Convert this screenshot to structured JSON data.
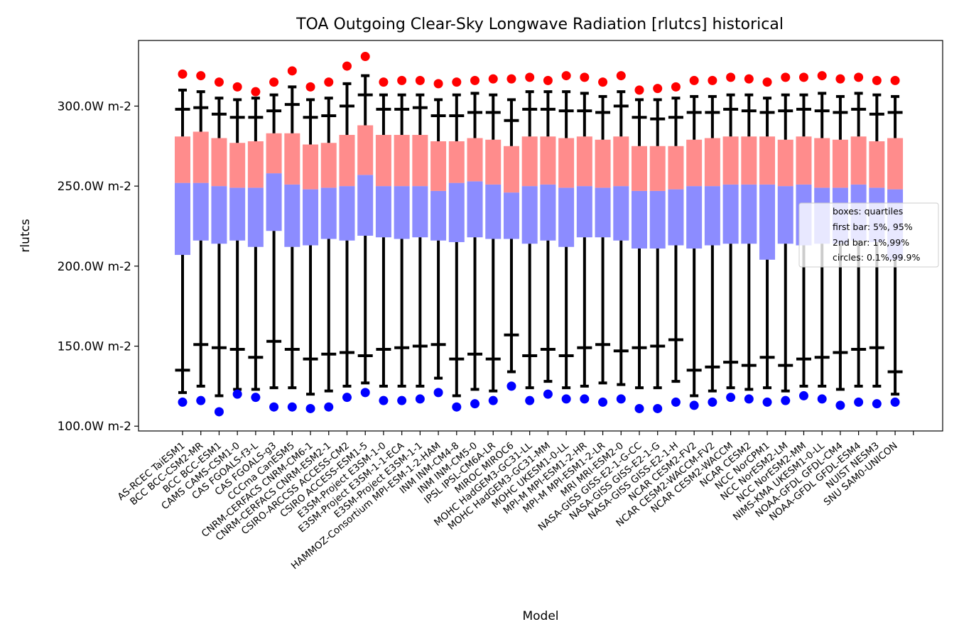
{
  "chart_data": {
    "type": "box",
    "title": "TOA Outgoing Clear-Sky Longwave Radiation [rlutcs] historical",
    "xlabel": "Model",
    "ylabel": "rlutcs",
    "ylim": [
      97,
      341
    ],
    "yticks": [
      100,
      150,
      200,
      250,
      300
    ],
    "ytick_labels": [
      "100.0W m-2",
      "150.0W m-2",
      "200.0W m-2",
      "250.0W m-2",
      "300.0W m-2"
    ],
    "legend": {
      "position": "right",
      "lines": [
        "boxes: quartiles",
        "first bar: 5%, 95%",
        "2nd bar: 1%,99%",
        "circles: 0.1%,99.9%"
      ]
    },
    "colors": {
      "lower_box": "#8c8cff",
      "upper_box": "#ff8c8c",
      "whisker": "#000000",
      "high_circle": "#ff0000",
      "low_circle": "#0000ff"
    },
    "categories": [
      "AS-RCEC TaiESM1",
      "BCC BCC-CSM2-MR",
      "BCC BCC-ESM1",
      "CAMS CAMS-CSM1-0",
      "CAS FGOALS-f3-L",
      "CAS FGOALS-g3",
      "CCCma CanESM5",
      "CNRM-CERFACS CNRM-CM6-1",
      "CNRM-CERFACS CNRM-ESM2-1",
      "CSIRO-ARCCSS ACCESS-CM2",
      "CSIRO ACCESS-ESM1-5",
      "E3SM-Project E3SM-1-0",
      "E3SM-Project E3SM-1-1-ECA",
      "E3SM-Project E3SM-1-1",
      "HAMMOZ-Consortium MPI-ESM-1-2-HAM",
      "INM INM-CM4-8",
      "INM INM-CM5-0",
      "IPSL IPSL-CM6A-LR",
      "MIROC MIROC6",
      "MOHC HadGEM3-GC31-LL",
      "MOHC HadGEM3-GC31-MM",
      "MOHC UKESM1-0-LL",
      "MPI-M MPI-ESM1-2-HR",
      "MPI-M MPI-ESM1-2-LR",
      "MRI MRI-ESM2-0",
      "NASA-GISS GISS-E2-1-G-CC",
      "NASA-GISS GISS-E2-1-G",
      "NASA-GISS GISS-E2-1-H",
      "NCAR CESM2-FV2",
      "NCAR CESM2-WACCM-FV2",
      "NCAR CESM2-WACCM",
      "NCAR CESM2",
      "NCC NorCPM1",
      "NCC NorESM2-LM",
      "NCC NorESM2-MM",
      "NIMS-KMA UKESM1-0-LL",
      "NOAA-GFDL GFDL-CM4",
      "NOAA-GFDL GFDL-ESM4",
      "NUIST NESM3",
      "SNU SAM0-UNICON"
    ],
    "series": {
      "p0_1": [
        115,
        116,
        109,
        120,
        118,
        112,
        112,
        111,
        112,
        118,
        121,
        116,
        116,
        117,
        121,
        112,
        114,
        116,
        125,
        116,
        120,
        117,
        117,
        115,
        117,
        111,
        111,
        115,
        113,
        115,
        118,
        117,
        115,
        116,
        119,
        117,
        113,
        115,
        114,
        115
      ],
      "p1": [
        121,
        125,
        119,
        123,
        123,
        124,
        124,
        120,
        122,
        125,
        127,
        125,
        125,
        125,
        130,
        119,
        123,
        122,
        134,
        124,
        128,
        124,
        125,
        127,
        126,
        124,
        124,
        128,
        119,
        122,
        124,
        123,
        124,
        122,
        125,
        125,
        123,
        125,
        125,
        120
      ],
      "p5": [
        135,
        151,
        149,
        148,
        143,
        153,
        148,
        142,
        145,
        146,
        144,
        148,
        149,
        150,
        151,
        142,
        145,
        142,
        157,
        144,
        148,
        144,
        149,
        151,
        147,
        149,
        150,
        154,
        135,
        137,
        140,
        138,
        143,
        138,
        142,
        143,
        146,
        148,
        149,
        134
      ],
      "q25": [
        207,
        216,
        214,
        216,
        212,
        222,
        212,
        213,
        217,
        216,
        219,
        218,
        217,
        218,
        216,
        215,
        218,
        217,
        217,
        214,
        216,
        212,
        218,
        218,
        216,
        211,
        211,
        213,
        211,
        213,
        214,
        214,
        204,
        214,
        213,
        214,
        214,
        216,
        215,
        204
      ],
      "median": [
        252,
        252,
        250,
        249,
        249,
        258,
        251,
        248,
        249,
        250,
        257,
        250,
        250,
        250,
        247,
        252,
        253,
        251,
        246,
        250,
        251,
        249,
        250,
        249,
        250,
        247,
        247,
        248,
        250,
        250,
        251,
        251,
        251,
        250,
        251,
        249,
        249,
        251,
        249,
        248
      ],
      "q75": [
        281,
        284,
        280,
        277,
        278,
        283,
        283,
        276,
        277,
        282,
        288,
        282,
        282,
        282,
        278,
        278,
        280,
        279,
        275,
        281,
        281,
        280,
        281,
        279,
        281,
        275,
        275,
        275,
        279,
        280,
        281,
        281,
        281,
        279,
        281,
        280,
        279,
        281,
        278,
        280
      ],
      "p95": [
        298,
        299,
        295,
        293,
        293,
        297,
        301,
        293,
        294,
        300,
        307,
        298,
        298,
        299,
        294,
        294,
        296,
        296,
        291,
        298,
        298,
        297,
        297,
        296,
        300,
        293,
        292,
        293,
        296,
        296,
        298,
        297,
        296,
        297,
        298,
        297,
        296,
        298,
        295,
        296
      ],
      "p99": [
        310,
        309,
        305,
        304,
        305,
        307,
        312,
        304,
        305,
        314,
        319,
        307,
        307,
        307,
        304,
        307,
        308,
        307,
        304,
        309,
        309,
        309,
        308,
        306,
        309,
        304,
        304,
        305,
        306,
        306,
        307,
        307,
        305,
        307,
        307,
        308,
        306,
        308,
        307,
        306
      ],
      "p99_9": [
        320,
        319,
        315,
        312,
        309,
        315,
        322,
        312,
        315,
        325,
        331,
        315,
        316,
        316,
        314,
        315,
        316,
        317,
        317,
        318,
        316,
        319,
        318,
        315,
        319,
        310,
        311,
        312,
        316,
        316,
        318,
        317,
        315,
        318,
        318,
        319,
        317,
        318,
        316,
        316
      ]
    }
  }
}
